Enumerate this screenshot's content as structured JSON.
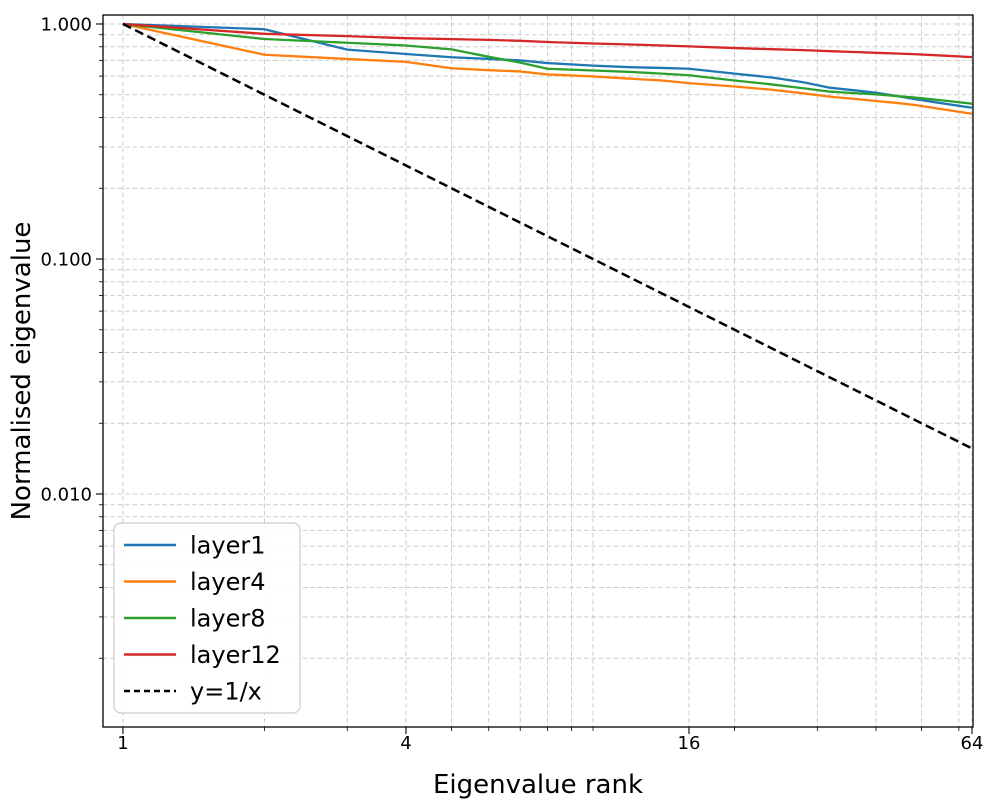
{
  "figure": {
    "background": "#ffffff"
  },
  "chart_data": {
    "type": "line",
    "x_scale": "log",
    "y_scale": "log",
    "title": "",
    "xlabel": "Eigenvalue rank",
    "ylabel": "Normalised eigenvalue",
    "grid": true,
    "grid_color": "#cccccc",
    "x": [
      1,
      2,
      3,
      4,
      5,
      6,
      7,
      8,
      10,
      12,
      14,
      16,
      20,
      24,
      28,
      32,
      36,
      40,
      44,
      48,
      56,
      64
    ],
    "series": [
      {
        "name": "layer1",
        "color": "#1f77b4",
        "style": "solid",
        "values": [
          1.0,
          0.95,
          0.778,
          0.745,
          0.722,
          0.71,
          0.7,
          0.682,
          0.665,
          0.655,
          0.65,
          0.645,
          0.615,
          0.592,
          0.565,
          0.535,
          0.522,
          0.51,
          0.495,
          0.48,
          0.458,
          0.44
        ]
      },
      {
        "name": "layer4",
        "color": "#ff7f0e",
        "style": "solid",
        "values": [
          1.0,
          0.74,
          0.71,
          0.69,
          0.648,
          0.636,
          0.628,
          0.61,
          0.598,
          0.585,
          0.575,
          0.56,
          0.542,
          0.525,
          0.507,
          0.49,
          0.48,
          0.47,
          0.462,
          0.453,
          0.432,
          0.415
        ]
      },
      {
        "name": "layer8",
        "color": "#2ca02c",
        "style": "solid",
        "values": [
          1.0,
          0.863,
          0.832,
          0.81,
          0.78,
          0.725,
          0.685,
          0.645,
          0.634,
          0.625,
          0.615,
          0.605,
          0.575,
          0.553,
          0.533,
          0.515,
          0.508,
          0.502,
          0.494,
          0.487,
          0.472,
          0.458
        ]
      },
      {
        "name": "layer12",
        "color": "#d62728",
        "style": "solid",
        "values": [
          1.0,
          0.908,
          0.888,
          0.87,
          0.862,
          0.856,
          0.848,
          0.838,
          0.826,
          0.818,
          0.81,
          0.803,
          0.79,
          0.781,
          0.774,
          0.766,
          0.76,
          0.754,
          0.749,
          0.744,
          0.733,
          0.723
        ]
      },
      {
        "name": "y=1/x",
        "color": "#000000",
        "style": "dashed",
        "values": [
          1.0,
          0.5,
          0.33333,
          0.25,
          0.2,
          0.16667,
          0.14286,
          0.125,
          0.1,
          0.08333,
          0.07143,
          0.0625,
          0.05,
          0.04167,
          0.03571,
          0.03125,
          0.02778,
          0.025,
          0.02273,
          0.02083,
          0.01786,
          0.015625
        ]
      }
    ],
    "x_axis": {
      "label": "Eigenvalue rank",
      "range": [
        0.9069,
        64.31
      ],
      "major_ticks": [
        1,
        4,
        16,
        64
      ],
      "major_tick_labels": [
        "1",
        "4",
        "16",
        "64"
      ],
      "minor_ticks": [
        2,
        3,
        5,
        6,
        7,
        8,
        9,
        10,
        20,
        30,
        40,
        50,
        60
      ]
    },
    "y_axis": {
      "label": "Normalised eigenvalue",
      "range": [
        0.00102,
        1.092
      ],
      "major_ticks": [
        1.0,
        0.1,
        0.01
      ],
      "major_tick_labels": [
        "1.000",
        "0.100",
        "0.010"
      ],
      "minor_ticks": [
        0.9,
        0.8,
        0.7,
        0.6,
        0.5,
        0.4,
        0.3,
        0.2,
        0.09,
        0.08,
        0.07,
        0.06,
        0.05,
        0.04,
        0.03,
        0.02,
        0.009,
        0.008,
        0.007,
        0.006,
        0.005,
        0.004,
        0.003,
        0.002
      ]
    },
    "legend": {
      "position": "lower-left",
      "entries": [
        "layer1",
        "layer4",
        "layer8",
        "layer12",
        "y=1/x"
      ]
    }
  }
}
